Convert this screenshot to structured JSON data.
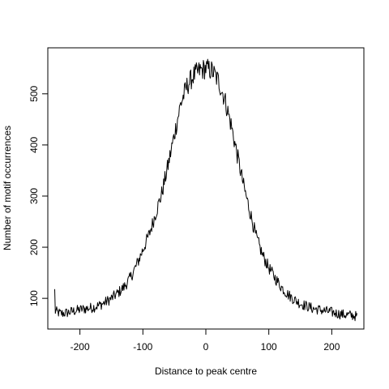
{
  "chart_data": {
    "type": "line",
    "title": "",
    "xlabel": "Distance to peak centre",
    "ylabel": "Number of motif occurrences",
    "xlim": [
      -251,
      251
    ],
    "ylim": [
      40,
      590
    ],
    "x_ticks": [
      -200,
      -100,
      0,
      100,
      200
    ],
    "y_ticks": [
      100,
      200,
      300,
      400,
      500
    ],
    "x_tick_labels": [
      "-200",
      "-100",
      "0",
      "100",
      "200"
    ],
    "y_tick_labels": [
      "100",
      "200",
      "300",
      "400",
      "500"
    ],
    "grid": false,
    "legend": "none",
    "line_color": "#000000",
    "series": [
      {
        "x": [
          -240,
          -230,
          -220,
          -210,
          -200,
          -190,
          -180,
          -170,
          -160,
          -150,
          -140,
          -130,
          -120,
          -110,
          -100,
          -90,
          -80,
          -70,
          -60,
          -50,
          -40,
          -30,
          -20,
          -10,
          0,
          10,
          20,
          30,
          40,
          50,
          60,
          70,
          80,
          90,
          100,
          110,
          120,
          130,
          140,
          150,
          160,
          170,
          180,
          190,
          200,
          210,
          220,
          230,
          240
        ],
        "y": [
          75,
          70,
          72,
          75,
          78,
          80,
          82,
          86,
          92,
          100,
          110,
          122,
          140,
          165,
          195,
          225,
          265,
          305,
          360,
          420,
          480,
          515,
          535,
          545,
          550,
          545,
          525,
          490,
          440,
          380,
          320,
          270,
          220,
          185,
          160,
          140,
          122,
          108,
          98,
          90,
          85,
          80,
          78,
          75,
          73,
          70,
          68,
          67,
          65
        ],
        "noise_amplitude": 14
      }
    ]
  }
}
